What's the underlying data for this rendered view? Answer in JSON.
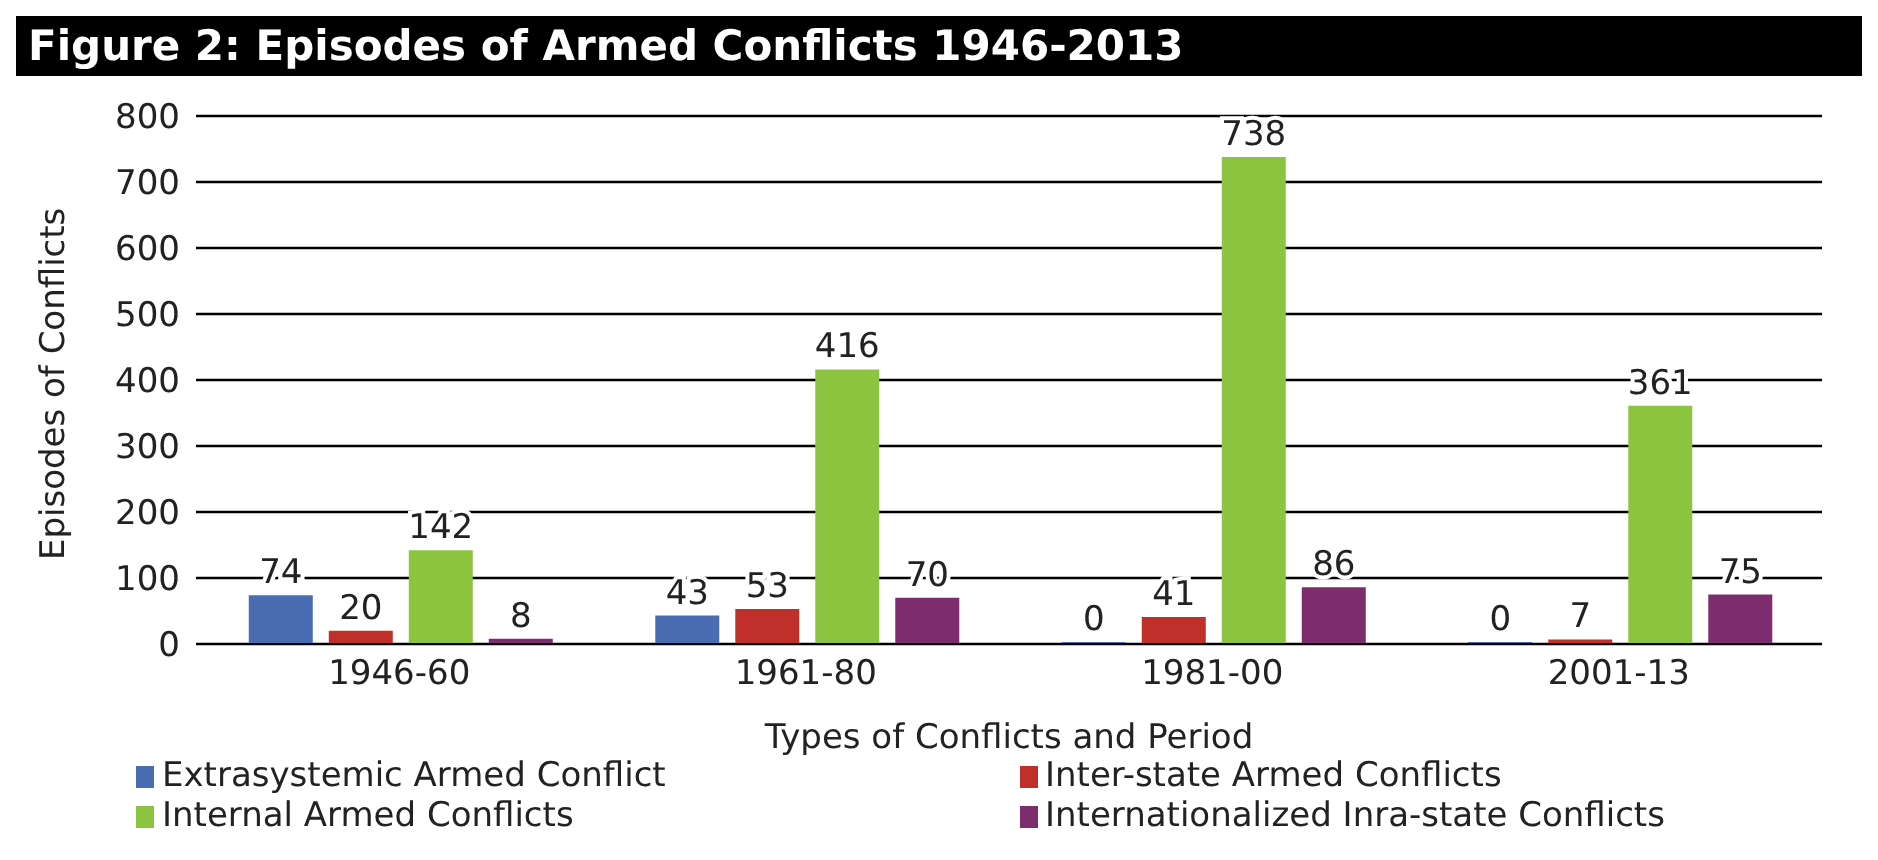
{
  "chart_data": {
    "type": "bar",
    "title": "Figure 2: Episodes of Armed Conflicts 1946-2013",
    "xlabel": "Types of Conflicts and Period",
    "ylabel": "Episodes of Conflicts",
    "categories": [
      "1946-60",
      "1961-80",
      "1981-00",
      "2001-13"
    ],
    "series": [
      {
        "name": "Extrasystemic Armed Conflict",
        "color": "#4a6cb3",
        "values": [
          74,
          43,
          0,
          0
        ]
      },
      {
        "name": "Inter-state Armed Conflicts",
        "color": "#c0302a",
        "values": [
          20,
          53,
          41,
          7
        ]
      },
      {
        "name": "Internal Armed Conflicts",
        "color": "#8dc43f",
        "values": [
          142,
          416,
          738,
          361
        ]
      },
      {
        "name": "Internationalized Inra-state Conflicts",
        "color": "#7d2c6e",
        "values": [
          8,
          70,
          86,
          75
        ]
      }
    ],
    "ylim": [
      0,
      800
    ],
    "yticks": [
      0,
      100,
      200,
      300,
      400,
      500,
      600,
      700,
      800
    ],
    "grid": "y",
    "data_labels": true,
    "legend": "bottom",
    "marker": "square"
  }
}
